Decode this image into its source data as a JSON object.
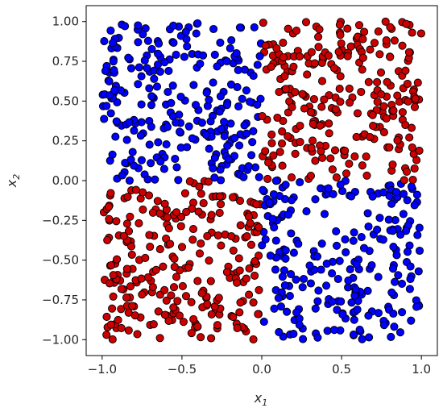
{
  "chart_data": {
    "type": "scatter",
    "title": "",
    "xlabel": {
      "base": "x",
      "sub": "1"
    },
    "ylabel": {
      "base": "x",
      "sub": "2"
    },
    "xlim": [
      -1.1,
      1.1
    ],
    "ylim": [
      -1.1,
      1.1
    ],
    "xticks": [
      -1.0,
      -0.5,
      0.0,
      0.5,
      1.0
    ],
    "xtick_labels": [
      "−1.0",
      "−0.5",
      "0.0",
      "0.5",
      "1.0"
    ],
    "yticks": [
      1.0,
      0.75,
      0.5,
      0.25,
      0.0,
      -0.25,
      -0.5,
      -0.75,
      -1.0
    ],
    "ytick_labels": [
      "1.00",
      "0.75",
      "0.50",
      "0.25",
      "0.00",
      "−0.25",
      "−0.50",
      "−0.75",
      "−1.00"
    ],
    "grid": false,
    "legend": "none",
    "n_points": 1000,
    "rule": "blue where x1 * x2 < 0 (quadrants II and IV), red where x1 * x2 > 0 (quadrants I and III)",
    "series": [
      {
        "color": "#0000ff",
        "edgecolor": "#000000"
      },
      {
        "color": "#cc0000",
        "edgecolor": "#000000"
      }
    ]
  }
}
